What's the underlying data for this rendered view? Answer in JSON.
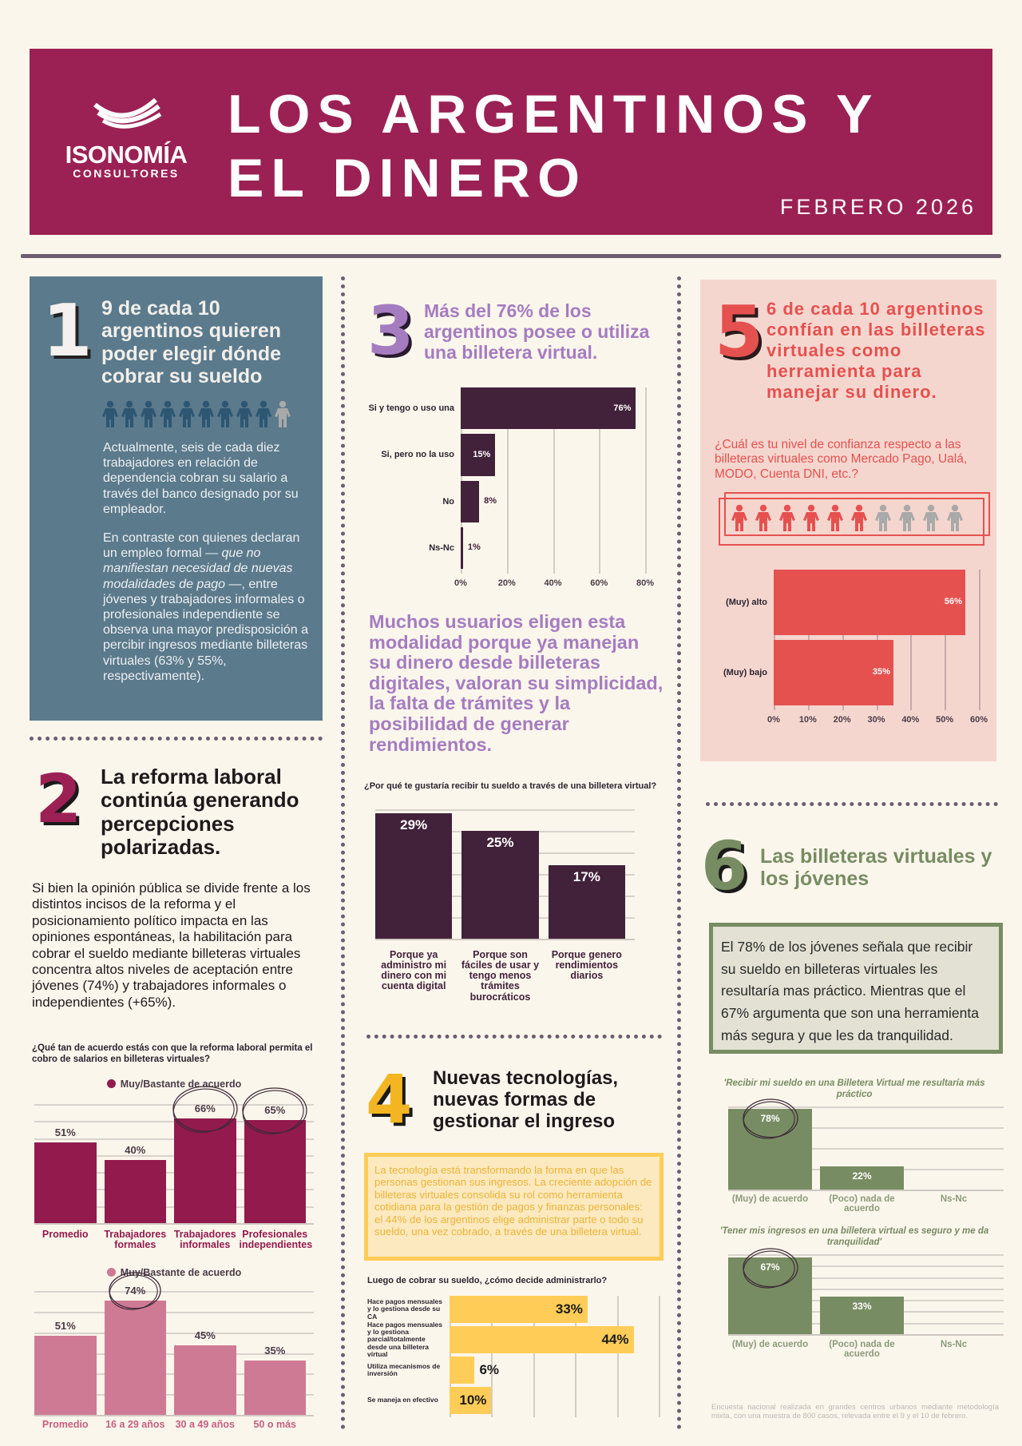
{
  "header": {
    "logo_name": "ISONOMÍA",
    "logo_sub": "CONSULTORES",
    "title_line1": "LOS ARGENTINOS Y",
    "title_line2": "EL DINERO",
    "date": "FEBRERO 2026",
    "color": "#9b2154"
  },
  "s1": {
    "number": "1",
    "heading": "9 de cada 10 argentinos quieren poder elegir dónde cobrar su sueldo",
    "icons": {
      "icon": "person-icon",
      "filled": 9,
      "total": 10,
      "filled_color": "#2d5672",
      "empty_color": "#a9a9a9"
    },
    "p1": "Actualmente, seis de cada diez trabajadores en relación de dependencia cobran su salario a través del banco designado por su empleador.",
    "p2a": "En contraste con quienes declaran un empleo formal —",
    "p2b": "que no manifiestan necesidad de nuevas modalidades de pago",
    "p2c": "—, entre jóvenes y trabajadores informales o profesionales independiente se observa una mayor predisposición a percibir ingresos mediante billeteras virtuales (63% y 55%, respectivamente)."
  },
  "s2": {
    "number": "2",
    "heading": "La reforma laboral continúa generando percepciones polarizadas.",
    "body": "Si bien la opinión pública se divide frente a los distintos incisos de la reforma y el posicionamiento político impacta en las opiniones espontáneas, la habilitación para cobrar el sueldo mediante billeteras virtuales concentra altos niveles de aceptación entre jóvenes (74%) y trabajadores informales o independientes (+65%).",
    "question": "¿Qué tan de acuerdo estás con que la reforma laboral permita el cobro de salarios en billeteras virtuales?"
  },
  "s3": {
    "number": "3",
    "heading": "Más del 76% de los argentinos posee o utiliza una billetera virtual.",
    "highlight": "Muchos usuarios eligen esta modalidad porque ya manejan su dinero desde billeteras digitales, valoran su simplicidad, la falta de trámites y la posibilidad de generar rendimientos.",
    "question": "¿Por qué te gustaría recibir tu sueldo a través de una billetera virtual?"
  },
  "s4": {
    "number": "4",
    "heading": "Nuevas tecnologías, nuevas formas de gestionar el ingreso",
    "body": "La tecnología está transformando la forma en que las personas gestionan sus ingresos. La creciente adopción de billeteras virtuales consolida su rol como herramienta cotidiana para la gestión de pagos y finanzas personales: el 44% de los argentinos elige administrar parte o todo su sueldo, una vez cobrado, a través de una billetera virtual.",
    "question": "Luego de cobrar su sueldo, ¿cómo decide administrarlo?"
  },
  "s5": {
    "number": "5",
    "heading": "6 de cada 10 argentinos confían en las billeteras virtuales como herramienta para manejar su dinero.",
    "question": "¿Cuál es tu nivel de confianza respecto a las billeteras virtuales como Mercado Pago, Ualá, MODO, Cuenta DNI, etc.?",
    "icons": {
      "icon": "person-icon",
      "filled": 6,
      "total": 10,
      "filled_color": "#e5514f",
      "empty_color": "#a9a9a9"
    }
  },
  "s6": {
    "number": "6",
    "heading": "Las billeteras virtuales y los jóvenes",
    "body": "El 78% de los jóvenes señala que recibir su sueldo en billeteras virtuales les resultaría mas práctico. Mientras que el 67% argumenta que son una herramienta más segura y que les da tranquilidad.",
    "footnote": "Encuesta nacional realizada en grandes centros urbanos mediante metodología mixta, con una muestra de 800 casos, relevada entre el 9 y el 10 de febrero."
  },
  "chart_data": [
    {
      "id": "c2a",
      "type": "bar",
      "legend": "Muy/Bastante de acuerdo",
      "categories": [
        "Promedio",
        "Trabajadores formales",
        "Trabajadores informales",
        "Profesionales independientes"
      ],
      "values": [
        51,
        40,
        66,
        65
      ],
      "value_labels": [
        "51%",
        "40%",
        "66%",
        "65%"
      ],
      "highlighted": [
        "Trabajadores informales",
        "Profesionales independientes"
      ],
      "ylim": [
        0,
        75
      ],
      "color": "#921a4d",
      "grid": true
    },
    {
      "id": "c2b",
      "type": "bar",
      "legend": "Muy/Bastante de acuerdo",
      "categories": [
        "Promedio",
        "16 a 29 años",
        "30 a 49 años",
        "50 o más"
      ],
      "values": [
        51,
        74,
        45,
        35
      ],
      "value_labels": [
        "51%",
        "74%",
        "45%",
        "35%"
      ],
      "highlighted": [
        "16 a 29 años"
      ],
      "ylim": [
        0,
        80
      ],
      "color": "#cf7a94",
      "grid": true
    },
    {
      "id": "c3a",
      "type": "bar",
      "orientation": "horizontal",
      "categories": [
        "Si y tengo o uso una",
        "Si, pero no la uso",
        "No",
        "Ns-Nc"
      ],
      "values": [
        76,
        15,
        8,
        1
      ],
      "value_labels": [
        "76%",
        "15%",
        "8%",
        "1%"
      ],
      "xlim": [
        0,
        80
      ],
      "ticks": [
        "0%",
        "20%",
        "40%",
        "60%",
        "80%"
      ],
      "color": "#42213a",
      "grid": true
    },
    {
      "id": "c3b",
      "type": "bar",
      "categories": [
        "Porque ya administro mi dinero con mi cuenta digital",
        "Porque son fáciles de usar y tengo menos trámites burocráticos",
        "Porque genero rendimientos diarios"
      ],
      "values": [
        29,
        25,
        17
      ],
      "value_labels": [
        "29%",
        "25%",
        "17%"
      ],
      "ylim": [
        0,
        30
      ],
      "color": "#42213a",
      "grid": true
    },
    {
      "id": "c4",
      "type": "bar",
      "orientation": "horizontal",
      "categories": [
        "Hace pagos mensuales y lo gestiona desde su CA",
        "Hace pagos mensuales y lo gestiona parcial/totalmente desde una billetera virtual",
        "Utiliza mecanismos de inversión",
        "Se maneja en efectivo"
      ],
      "values": [
        33,
        44,
        6,
        10
      ],
      "value_labels": [
        "33%",
        "44%",
        "6%",
        "10%"
      ],
      "xlim": [
        0,
        50
      ],
      "color": "#ffcd57",
      "grid": true
    },
    {
      "id": "c5",
      "type": "bar",
      "orientation": "horizontal",
      "categories": [
        "(Muy) alto",
        "(Muy) bajo"
      ],
      "values": [
        56,
        35
      ],
      "value_labels": [
        "56%",
        "35%"
      ],
      "xlim": [
        0,
        60
      ],
      "ticks": [
        "0%",
        "10%",
        "20%",
        "30%",
        "40%",
        "50%",
        "60%"
      ],
      "color": "#e5514f",
      "grid": true
    },
    {
      "id": "c6a",
      "type": "bar",
      "title": "'Recibir mi sueldo en una Billetera Virtual me resultaría más práctico",
      "categories": [
        "(Muy) de acuerdo",
        "(Poco) nada de acuerdo",
        "Ns-Nc"
      ],
      "values": [
        78,
        22,
        0
      ],
      "value_labels": [
        "78%",
        "22%",
        ""
      ],
      "highlighted": [
        "(Muy) de acuerdo"
      ],
      "ylim": [
        0,
        80
      ],
      "color": "#778c62",
      "grid": true
    },
    {
      "id": "c6b",
      "type": "bar",
      "title": "'Tener mis ingresos en una billetera virtual es seguro y me da tranquilidad'",
      "categories": [
        "(Muy) de acuerdo",
        "(Poco) nada de acuerdo",
        "Ns-Nc"
      ],
      "values": [
        67,
        33,
        0
      ],
      "value_labels": [
        "67%",
        "33%",
        ""
      ],
      "highlighted": [
        "(Muy) de acuerdo"
      ],
      "ylim": [
        0,
        70
      ],
      "color": "#778c62",
      "grid": true
    }
  ]
}
